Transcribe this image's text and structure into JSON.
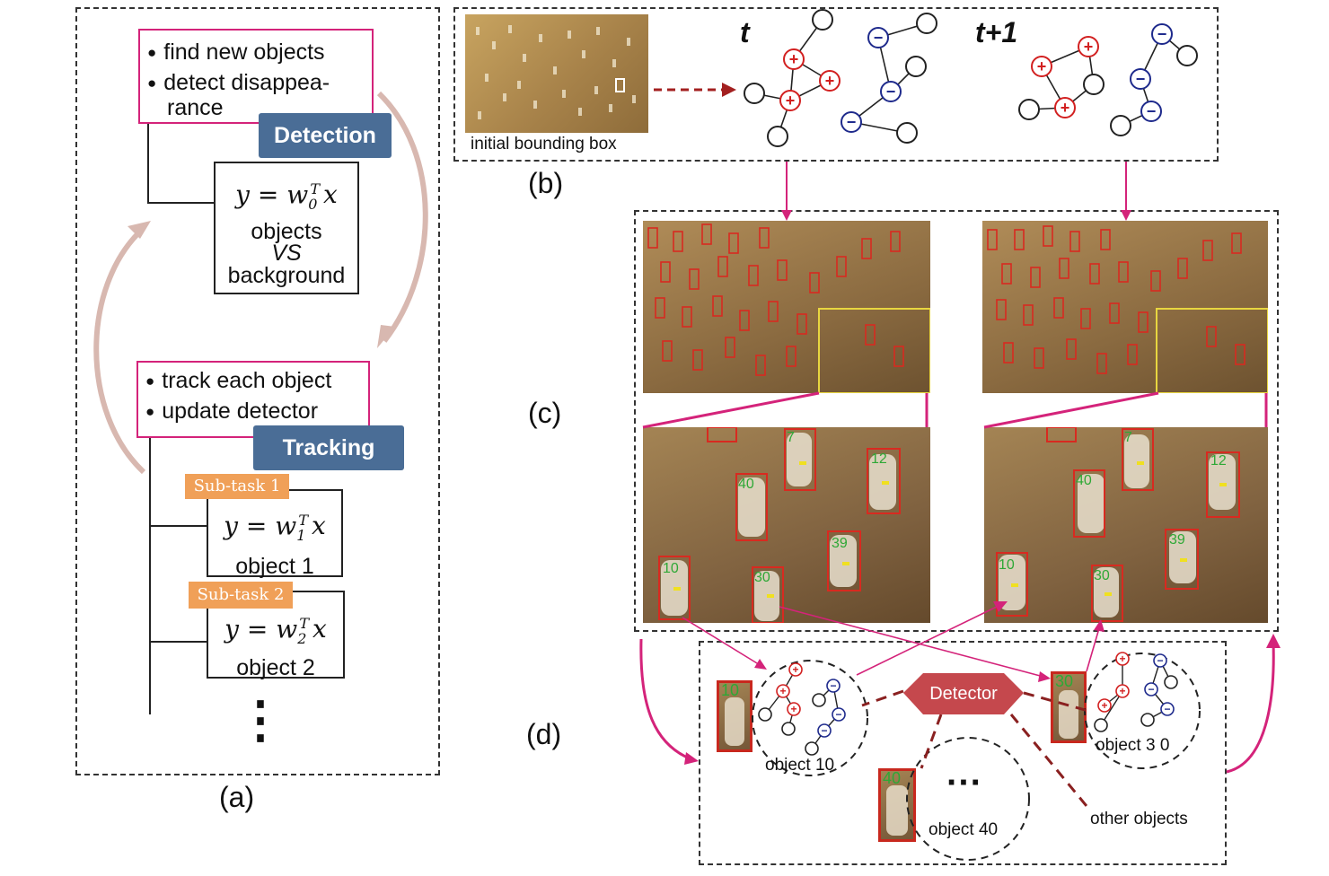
{
  "panel_a": {
    "detection_bullets": [
      "find new objects",
      "detect disappea-"
    ],
    "detection_bullet_cont": "rance",
    "detection_label": "Detection",
    "detector_eq": {
      "lhs": "y = w",
      "sub": "0",
      "sup": "T",
      "rhs": "x"
    },
    "detector_desc_1": "objects",
    "detector_desc_vs": "VS",
    "detector_desc_2": "background",
    "tracking_bullets": [
      "track each object",
      "update detector"
    ],
    "tracking_label": "Tracking",
    "subtasks": [
      {
        "tag": "Sub-task 1",
        "lhs": "y = w",
        "sub": "1",
        "sup": "T",
        "rhs": "x",
        "object": "object 1"
      },
      {
        "tag": "Sub-task 2",
        "lhs": "y = w",
        "sub": "2",
        "sup": "T",
        "rhs": "x",
        "object": "object 2"
      }
    ],
    "ellipsis": "⋮",
    "caption": "(a)"
  },
  "panel_b": {
    "image_caption": "initial bounding box",
    "time_t": "t",
    "time_t1": "t+1",
    "caption": "(b)"
  },
  "panel_c": {
    "caption": "(c)"
  },
  "panel_d": {
    "detector_label": "Detector",
    "objects": [
      "object 10",
      "object 3 0",
      "object 40"
    ],
    "ellipsis": "···",
    "other_objects": "other objects",
    "zebra_ids": [
      "10",
      "30",
      "40"
    ],
    "caption": "(d)"
  },
  "zebra_ids_crop": [
    "7",
    "12",
    "40",
    "39",
    "10",
    "30"
  ],
  "colors": {
    "pink": "#d4237a",
    "detector": "#c5484d",
    "positive": "#d22020",
    "negative": "#1e2a8c"
  }
}
